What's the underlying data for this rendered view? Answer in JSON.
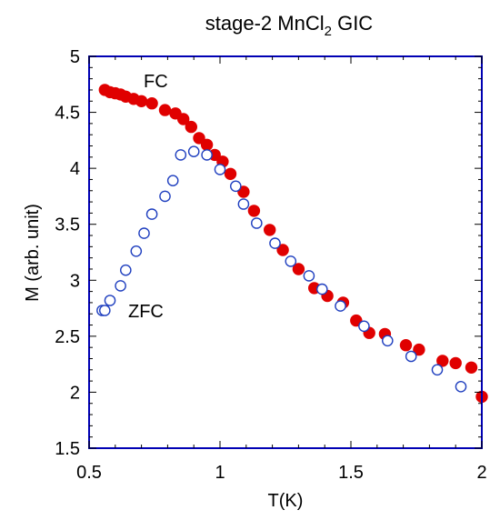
{
  "chart_data": {
    "type": "scatter",
    "title_parts": [
      "stage-2 MnCl",
      "2",
      " GIC"
    ],
    "xlabel": "T(K)",
    "ylabel": "M (arb. unit)",
    "xlim": [
      0.5,
      2
    ],
    "ylim": [
      1.5,
      5
    ],
    "xticks": [
      "0.5",
      "1",
      "1.5",
      "2"
    ],
    "yticks": [
      "1.5",
      "2",
      "2.5",
      "3",
      "3.5",
      "4",
      "4.5",
      "5"
    ],
    "grid": false,
    "annotations": [
      "FC",
      "ZFC"
    ],
    "series": [
      {
        "name": "FC",
        "marker": "filled-circle",
        "color": "#e00000",
        "x": [
          0.56,
          0.58,
          0.6,
          0.62,
          0.64,
          0.67,
          0.7,
          0.74,
          0.79,
          0.83,
          0.86,
          0.89,
          0.92,
          0.95,
          0.98,
          1.01,
          1.04,
          1.09,
          1.13,
          1.19,
          1.24,
          1.3,
          1.36,
          1.41,
          1.47,
          1.52,
          1.57,
          1.63,
          1.71,
          1.76,
          1.85,
          1.9,
          1.96,
          2.0
        ],
        "y": [
          4.7,
          4.68,
          4.67,
          4.66,
          4.64,
          4.62,
          4.6,
          4.58,
          4.52,
          4.49,
          4.44,
          4.37,
          4.27,
          4.21,
          4.12,
          4.06,
          3.95,
          3.79,
          3.62,
          3.45,
          3.27,
          3.1,
          2.93,
          2.86,
          2.8,
          2.64,
          2.53,
          2.52,
          2.42,
          2.38,
          2.28,
          2.26,
          2.22,
          1.96
        ]
      },
      {
        "name": "ZFC",
        "marker": "open-circle",
        "color": "#1f3fbf",
        "x": [
          0.55,
          0.56,
          0.58,
          0.62,
          0.64,
          0.68,
          0.71,
          0.74,
          0.79,
          0.82,
          0.85,
          0.9,
          0.95,
          1.0,
          1.06,
          1.09,
          1.14,
          1.21,
          1.27,
          1.34,
          1.39,
          1.46,
          1.55,
          1.64,
          1.73,
          1.83,
          1.92
        ],
        "y": [
          2.73,
          2.73,
          2.82,
          2.95,
          3.09,
          3.26,
          3.42,
          3.59,
          3.75,
          3.89,
          4.12,
          4.15,
          4.12,
          3.99,
          3.84,
          3.68,
          3.51,
          3.33,
          3.17,
          3.04,
          2.92,
          2.77,
          2.59,
          2.46,
          2.32,
          2.2,
          2.05
        ]
      }
    ]
  }
}
